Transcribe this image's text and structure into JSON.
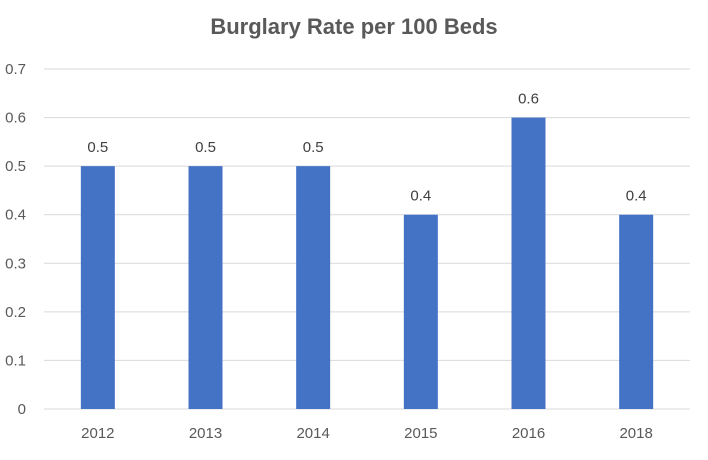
{
  "chart_data": {
    "type": "bar",
    "title": "Burglary Rate per 100 Beds",
    "xlabel": "",
    "ylabel": "",
    "categories": [
      "2012",
      "2013",
      "2014",
      "2015",
      "2016",
      "2018"
    ],
    "values": [
      0.5,
      0.5,
      0.5,
      0.4,
      0.6,
      0.4
    ],
    "data_labels": [
      "0.5",
      "0.5",
      "0.5",
      "0.4",
      "0.6",
      "0.4"
    ],
    "ylim": [
      0,
      0.7
    ],
    "yticks": [
      "0",
      "0.1",
      "0.2",
      "0.3",
      "0.4",
      "0.5",
      "0.6",
      "0.7"
    ],
    "grid": true,
    "legend": "none",
    "colors": {
      "bar": "#4472C4",
      "grid": "#D9D9D9",
      "axis_text": "#595959",
      "label_text": "#404040",
      "title_text": "#595959"
    }
  }
}
